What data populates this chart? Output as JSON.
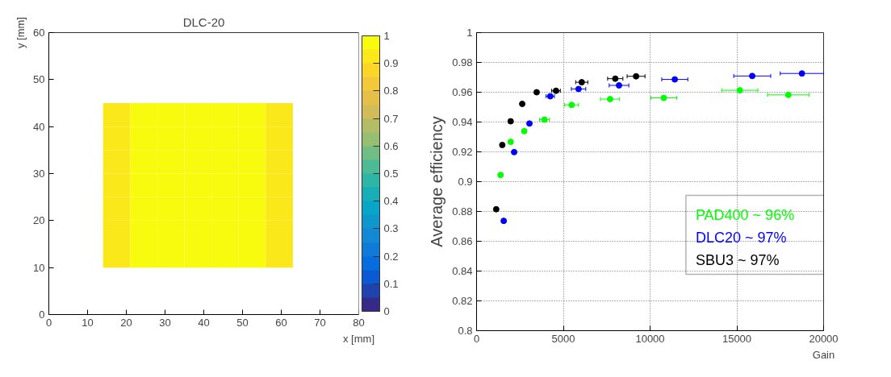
{
  "chart_data": [
    {
      "type": "heatmap",
      "title": "DLC-20",
      "xlabel": "x [mm]",
      "ylabel": "y [mm]",
      "x": [
        17.5,
        24.5,
        31.5,
        38.5,
        45.5,
        52.5,
        59.5
      ],
      "y": [
        42.5,
        37.5,
        32.5,
        27.5,
        22.5,
        17.5,
        12.5
      ],
      "cells": [
        [
          0.92,
          0.97,
          0.97,
          0.97,
          0.97,
          0.97,
          0.92
        ],
        [
          0.92,
          0.97,
          0.97,
          0.97,
          0.97,
          0.97,
          0.92
        ],
        [
          0.92,
          0.97,
          0.97,
          0.97,
          0.97,
          0.97,
          0.92
        ],
        [
          0.92,
          0.97,
          0.97,
          0.97,
          0.97,
          0.97,
          0.92
        ],
        [
          0.92,
          0.97,
          0.97,
          0.97,
          0.97,
          0.97,
          0.92
        ],
        [
          0.92,
          0.97,
          0.97,
          0.97,
          0.97,
          0.97,
          0.92
        ],
        [
          0.92,
          0.97,
          0.97,
          0.97,
          0.97,
          0.97,
          0.92
        ]
      ],
      "xlim": [
        0,
        80
      ],
      "ylim": [
        0,
        60
      ],
      "xticks": [
        0,
        10,
        20,
        30,
        40,
        50,
        60,
        70,
        80
      ],
      "yticks": [
        0,
        10,
        20,
        30,
        40,
        50,
        60
      ],
      "clim": [
        0,
        1
      ],
      "cticks": [
        0,
        0.1,
        0.2,
        0.3,
        0.4,
        0.5,
        0.6,
        0.7,
        0.8,
        0.9,
        1
      ]
    },
    {
      "type": "scatter",
      "xlabel": "Gain",
      "ylabel": "Average efficiency",
      "xlim": [
        0,
        20000
      ],
      "ylim": [
        0.8,
        1
      ],
      "xticks": [
        0,
        5000,
        10000,
        15000,
        20000
      ],
      "yticks": [
        0.8,
        0.82,
        0.84,
        0.86,
        0.88,
        0.9,
        0.92,
        0.94,
        0.96,
        0.98,
        1
      ],
      "grid": true,
      "marker": "circle",
      "legend": "bottom right",
      "series": [
        {
          "name": "PAD400 ~ 96%",
          "color": "#00ff00",
          "x": [
            1382,
            1965,
            2748,
            3913,
            5478,
            7693,
            10790,
            15170,
            17968
          ],
          "values": [
            0.9045,
            0.9267,
            0.9339,
            0.9416,
            0.9515,
            0.9554,
            0.9562,
            0.9613,
            0.9582
          ],
          "errors": [
            0.0015,
            0.0015,
            0.0015,
            0.0015,
            0.0015,
            0.0015,
            0.0015,
            0.0015,
            0.0015
          ],
          "xerrors": [
            null,
            null,
            null,
            283,
            400,
            550,
            750,
            1040,
            1200
          ]
        },
        {
          "name": "DLC20 ~ 97%",
          "color": "#0000ff",
          "x": [
            1565,
            2165,
            3047,
            4246,
            5878,
            8209,
            11423,
            15886,
            18750
          ],
          "values": [
            0.8737,
            0.9198,
            0.939,
            0.9573,
            0.9622,
            0.9646,
            0.9686,
            0.9709,
            0.9726
          ],
          "errors": [
            0.002,
            0.0015,
            0.0015,
            0.0015,
            0.0015,
            0.0015,
            0.0015,
            0.0015,
            0.0015
          ],
          "xerrors": [
            null,
            null,
            null,
            240,
            416,
            566,
            750,
            1066,
            1250
          ]
        },
        {
          "name": "SBU3 ~ 97%",
          "color": "#000000",
          "x": [
            1132,
            1482,
            1965,
            2631,
            3464,
            4579,
            6061,
            7993,
            9192
          ],
          "values": [
            0.8815,
            0.9246,
            0.9405,
            0.9522,
            0.96,
            0.961,
            0.9667,
            0.9691,
            0.9707
          ],
          "errors": [
            0.0015,
            0.0015,
            0.0015,
            0.0015,
            0.0015,
            0.0015,
            0.0015,
            0.0015,
            0.0015
          ],
          "xerrors": [
            null,
            null,
            null,
            null,
            null,
            250,
            350,
            440,
            516
          ]
        }
      ]
    }
  ]
}
